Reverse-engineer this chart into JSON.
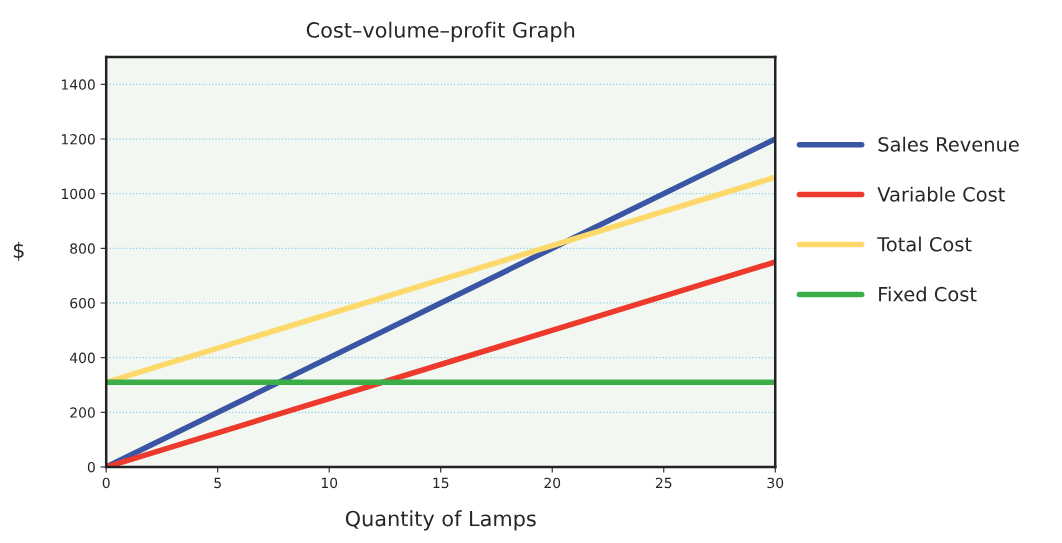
{
  "chart_data": {
    "type": "line",
    "title": "Cost–volume–profit Graph",
    "xlabel": "Quantity of Lamps",
    "ylabel": "$",
    "x": [
      0,
      30
    ],
    "series": [
      {
        "name": "Sales Revenue",
        "color": "#3a55a4",
        "values": [
          0,
          1200
        ]
      },
      {
        "name": "Variable Cost",
        "color": "#ee3a2c",
        "values": [
          0,
          750
        ]
      },
      {
        "name": "Total Cost",
        "color": "#fcd96a",
        "values": [
          310,
          1060
        ]
      },
      {
        "name": "Fixed Cost",
        "color": "#3cae49",
        "values": [
          310,
          310
        ]
      }
    ],
    "xlim": [
      0,
      30
    ],
    "xticks": [
      0,
      5,
      10,
      15,
      20,
      25,
      30
    ],
    "ylim": [
      0,
      1500
    ],
    "yticks": [
      0,
      200,
      400,
      600,
      800,
      1000,
      1200,
      1400
    ],
    "grid": "y",
    "legend": "right",
    "marker": "none",
    "line_style": "solid"
  }
}
